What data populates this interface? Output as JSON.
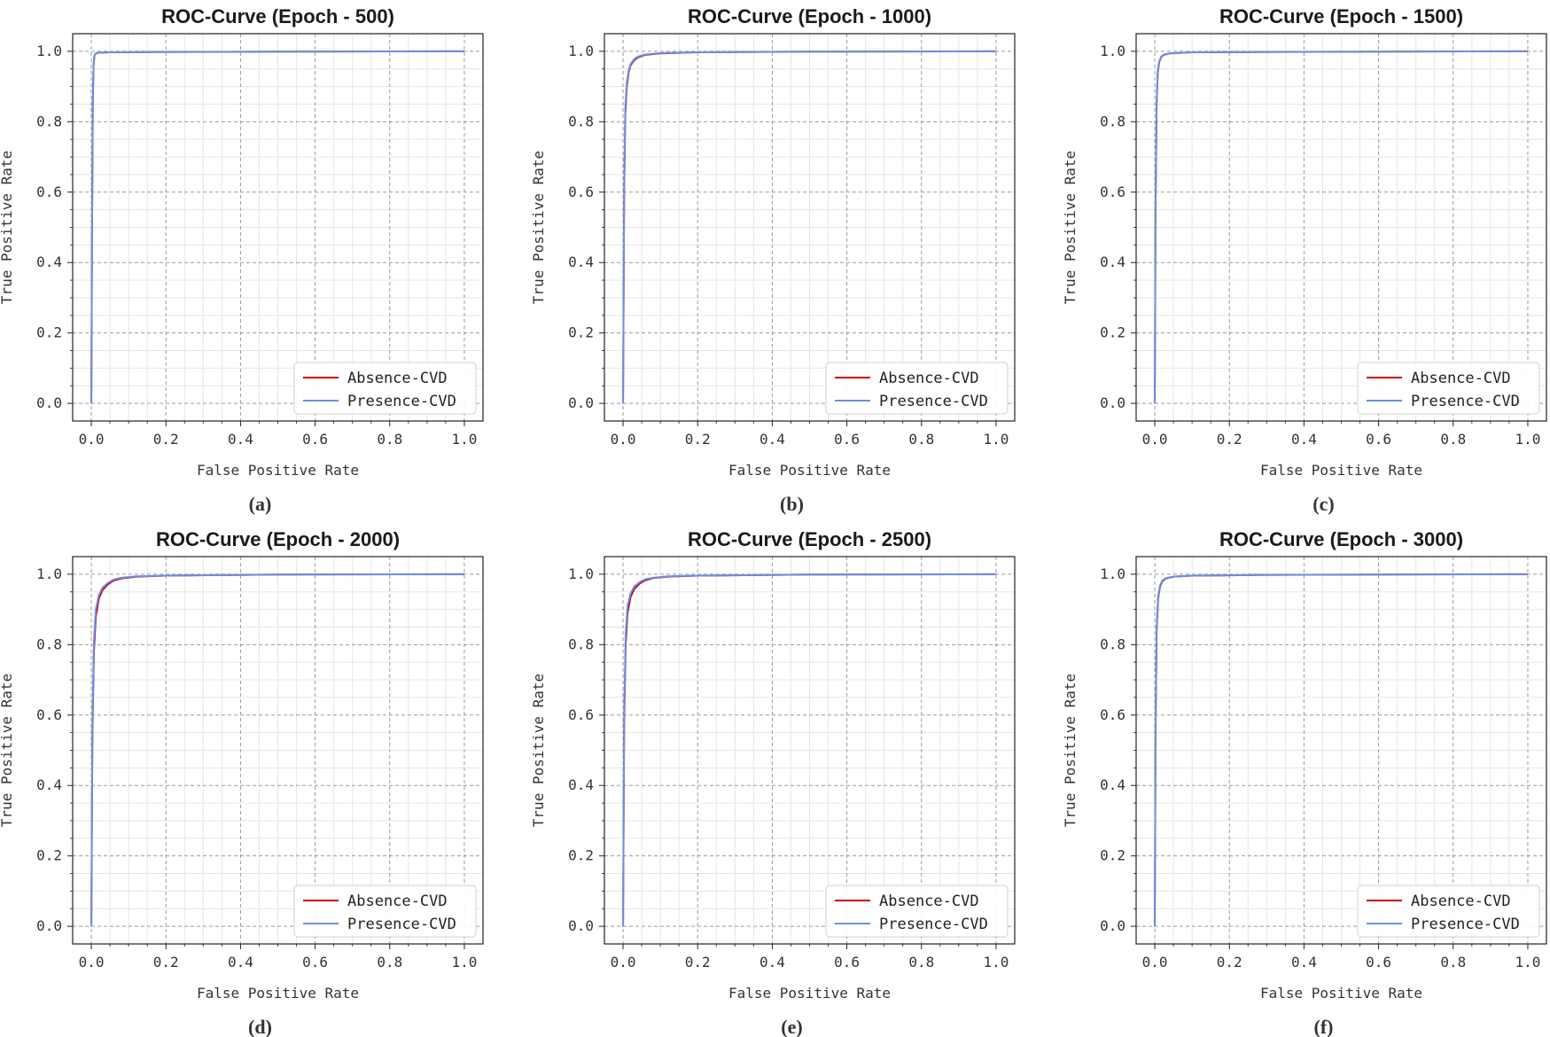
{
  "figure": {
    "description_free": true
  },
  "chart_data": [
    {
      "type": "line",
      "title": "ROC-Curve (Epoch - 500)",
      "caption": "(a)",
      "xlabel": "False Positive Rate",
      "ylabel": "True Positive Rate",
      "xlim": [
        -0.05,
        1.05
      ],
      "ylim": [
        -0.05,
        1.05
      ],
      "xticks": [
        "0.0",
        "0.2",
        "0.4",
        "0.6",
        "0.8",
        "1.0"
      ],
      "yticks": [
        "0.0",
        "0.2",
        "0.4",
        "0.6",
        "0.8",
        "1.0"
      ],
      "grid": true,
      "legend": "lower-right",
      "series": [
        {
          "name": "Absence-CVD",
          "color": "#cc0000",
          "x": [
            0,
            0.002,
            0.004,
            0.006,
            0.008,
            0.01,
            0.015,
            0.02,
            0.05,
            0.2,
            0.5,
            1.0
          ],
          "y": [
            0,
            0.5,
            0.85,
            0.96,
            0.985,
            0.992,
            0.995,
            0.996,
            0.997,
            0.998,
            0.999,
            1.0
          ]
        },
        {
          "name": "Presence-CVD",
          "color": "#6a8fe8",
          "x": [
            0,
            0.002,
            0.004,
            0.006,
            0.008,
            0.01,
            0.015,
            0.02,
            0.05,
            0.2,
            0.5,
            1.0
          ],
          "y": [
            0,
            0.5,
            0.85,
            0.96,
            0.985,
            0.992,
            0.995,
            0.996,
            0.997,
            0.998,
            0.999,
            1.0
          ]
        }
      ]
    },
    {
      "type": "line",
      "title": "ROC-Curve (Epoch - 1000)",
      "caption": "(b)",
      "xlabel": "False Positive Rate",
      "ylabel": "True Positive Rate",
      "xlim": [
        -0.05,
        1.05
      ],
      "ylim": [
        -0.05,
        1.05
      ],
      "xticks": [
        "0.0",
        "0.2",
        "0.4",
        "0.6",
        "0.8",
        "1.0"
      ],
      "yticks": [
        "0.0",
        "0.2",
        "0.4",
        "0.6",
        "0.8",
        "1.0"
      ],
      "grid": true,
      "legend": "lower-right",
      "series": [
        {
          "name": "Absence-CVD",
          "color": "#cc0000",
          "x": [
            0,
            0.003,
            0.006,
            0.01,
            0.015,
            0.02,
            0.03,
            0.04,
            0.06,
            0.1,
            0.2,
            0.5,
            1.0
          ],
          "y": [
            0,
            0.6,
            0.82,
            0.9,
            0.94,
            0.96,
            0.975,
            0.983,
            0.99,
            0.994,
            0.997,
            0.999,
            1.0
          ]
        },
        {
          "name": "Presence-CVD",
          "color": "#6a8fe8",
          "x": [
            0,
            0.003,
            0.006,
            0.01,
            0.015,
            0.02,
            0.03,
            0.04,
            0.06,
            0.1,
            0.2,
            0.5,
            1.0
          ],
          "y": [
            0,
            0.62,
            0.84,
            0.91,
            0.945,
            0.963,
            0.978,
            0.985,
            0.991,
            0.995,
            0.997,
            0.999,
            1.0
          ]
        }
      ]
    },
    {
      "type": "line",
      "title": "ROC-Curve (Epoch - 1500)",
      "caption": "(c)",
      "xlabel": "False Positive Rate",
      "ylabel": "True Positive Rate",
      "xlim": [
        -0.05,
        1.05
      ],
      "ylim": [
        -0.05,
        1.05
      ],
      "xticks": [
        "0.0",
        "0.2",
        "0.4",
        "0.6",
        "0.8",
        "1.0"
      ],
      "yticks": [
        "0.0",
        "0.2",
        "0.4",
        "0.6",
        "0.8",
        "1.0"
      ],
      "grid": true,
      "legend": "lower-right",
      "series": [
        {
          "name": "Absence-CVD",
          "color": "#cc0000",
          "x": [
            0,
            0.002,
            0.005,
            0.008,
            0.012,
            0.018,
            0.025,
            0.04,
            0.1,
            0.3,
            0.6,
            1.0
          ],
          "y": [
            0,
            0.55,
            0.85,
            0.94,
            0.97,
            0.985,
            0.99,
            0.994,
            0.997,
            0.998,
            0.999,
            1.0
          ]
        },
        {
          "name": "Presence-CVD",
          "color": "#6a8fe8",
          "x": [
            0,
            0.002,
            0.005,
            0.008,
            0.012,
            0.018,
            0.025,
            0.04,
            0.1,
            0.3,
            0.6,
            1.0
          ],
          "y": [
            0,
            0.56,
            0.86,
            0.945,
            0.972,
            0.986,
            0.991,
            0.994,
            0.997,
            0.998,
            0.999,
            1.0
          ]
        }
      ]
    },
    {
      "type": "line",
      "title": "ROC-Curve (Epoch - 2000)",
      "caption": "(d)",
      "xlabel": "False Positive Rate",
      "ylabel": "True Positive Rate",
      "xlim": [
        -0.05,
        1.05
      ],
      "ylim": [
        -0.05,
        1.05
      ],
      "xticks": [
        "0.0",
        "0.2",
        "0.4",
        "0.6",
        "0.8",
        "1.0"
      ],
      "yticks": [
        "0.0",
        "0.2",
        "0.4",
        "0.6",
        "0.8",
        "1.0"
      ],
      "grid": true,
      "legend": "lower-right",
      "series": [
        {
          "name": "Absence-CVD",
          "color": "#cc0000",
          "x": [
            0,
            0.003,
            0.007,
            0.012,
            0.02,
            0.03,
            0.045,
            0.06,
            0.08,
            0.12,
            0.2,
            0.5,
            1.0
          ],
          "y": [
            0,
            0.55,
            0.78,
            0.88,
            0.93,
            0.955,
            0.972,
            0.982,
            0.988,
            0.993,
            0.996,
            0.999,
            1.0
          ]
        },
        {
          "name": "Presence-CVD",
          "color": "#6a8fe8",
          "x": [
            0,
            0.003,
            0.007,
            0.012,
            0.02,
            0.03,
            0.045,
            0.06,
            0.08,
            0.12,
            0.2,
            0.5,
            1.0
          ],
          "y": [
            0,
            0.58,
            0.81,
            0.9,
            0.94,
            0.962,
            0.976,
            0.985,
            0.99,
            0.994,
            0.996,
            0.999,
            1.0
          ]
        }
      ]
    },
    {
      "type": "line",
      "title": "ROC-Curve (Epoch - 2500)",
      "caption": "(e)",
      "xlabel": "False Positive Rate",
      "ylabel": "True Positive Rate",
      "xlim": [
        -0.05,
        1.05
      ],
      "ylim": [
        -0.05,
        1.05
      ],
      "xticks": [
        "0.0",
        "0.2",
        "0.4",
        "0.6",
        "0.8",
        "1.0"
      ],
      "yticks": [
        "0.0",
        "0.2",
        "0.4",
        "0.6",
        "0.8",
        "1.0"
      ],
      "grid": true,
      "legend": "lower-right",
      "series": [
        {
          "name": "Absence-CVD",
          "color": "#cc0000",
          "x": [
            0,
            0.003,
            0.007,
            0.012,
            0.02,
            0.03,
            0.045,
            0.06,
            0.08,
            0.12,
            0.2,
            0.5,
            1.0
          ],
          "y": [
            0,
            0.58,
            0.8,
            0.89,
            0.935,
            0.958,
            0.974,
            0.983,
            0.989,
            0.993,
            0.996,
            0.999,
            1.0
          ]
        },
        {
          "name": "Presence-CVD",
          "color": "#6a8fe8",
          "x": [
            0,
            0.003,
            0.007,
            0.012,
            0.02,
            0.03,
            0.045,
            0.06,
            0.08,
            0.12,
            0.2,
            0.5,
            1.0
          ],
          "y": [
            0,
            0.61,
            0.83,
            0.91,
            0.945,
            0.965,
            0.978,
            0.986,
            0.99,
            0.994,
            0.996,
            0.999,
            1.0
          ]
        }
      ]
    },
    {
      "type": "line",
      "title": "ROC-Curve (Epoch - 3000)",
      "caption": "(f)",
      "xlabel": "False Positive Rate",
      "ylabel": "True Positive Rate",
      "xlim": [
        -0.05,
        1.05
      ],
      "ylim": [
        -0.05,
        1.05
      ],
      "xticks": [
        "0.0",
        "0.2",
        "0.4",
        "0.6",
        "0.8",
        "1.0"
      ],
      "yticks": [
        "0.0",
        "0.2",
        "0.4",
        "0.6",
        "0.8",
        "1.0"
      ],
      "grid": true,
      "legend": "lower-right",
      "series": [
        {
          "name": "Absence-CVD",
          "color": "#cc0000",
          "x": [
            0,
            0.002,
            0.005,
            0.009,
            0.014,
            0.02,
            0.03,
            0.05,
            0.1,
            0.3,
            0.6,
            1.0
          ],
          "y": [
            0,
            0.55,
            0.84,
            0.93,
            0.965,
            0.98,
            0.988,
            0.993,
            0.996,
            0.998,
            0.999,
            1.0
          ]
        },
        {
          "name": "Presence-CVD",
          "color": "#6a8fe8",
          "x": [
            0,
            0.002,
            0.005,
            0.009,
            0.014,
            0.02,
            0.03,
            0.05,
            0.1,
            0.3,
            0.6,
            1.0
          ],
          "y": [
            0,
            0.57,
            0.85,
            0.935,
            0.968,
            0.982,
            0.989,
            0.993,
            0.996,
            0.998,
            0.999,
            1.0
          ]
        }
      ]
    }
  ]
}
